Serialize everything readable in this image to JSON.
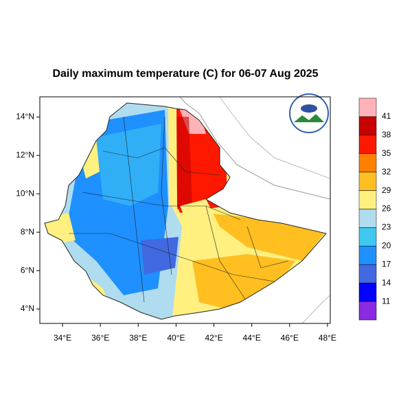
{
  "chart_data": {
    "type": "map",
    "title": "Daily maximum temperature (C) for 06-07 Aug 2025",
    "xlim": [
      32.8,
      48.15
    ],
    "ylim": [
      3.25,
      15.05
    ],
    "xticks": [
      {
        "value": 34,
        "label": "34°E"
      },
      {
        "value": 36,
        "label": "36°E"
      },
      {
        "value": 38,
        "label": "38°E"
      },
      {
        "value": 40,
        "label": "40°E"
      },
      {
        "value": 42,
        "label": "42°E"
      },
      {
        "value": 44,
        "label": "44°E"
      },
      {
        "value": 46,
        "label": "46°E"
      },
      {
        "value": 48,
        "label": "48°E"
      }
    ],
    "yticks": [
      {
        "value": 4,
        "label": "4°N"
      },
      {
        "value": 6,
        "label": "6°N"
      },
      {
        "value": 8,
        "label": "8°N"
      },
      {
        "value": 10,
        "label": "10°N"
      },
      {
        "value": 12,
        "label": "12°N"
      },
      {
        "value": 14,
        "label": "14°N"
      }
    ],
    "colorbar": {
      "levels": [
        41,
        38,
        35,
        32,
        29,
        26,
        23,
        20,
        17,
        14,
        11
      ],
      "colors": [
        "#ffb3b8",
        "#c80000",
        "#ff1800",
        "#ff8000",
        "#ffbf20",
        "#fff080",
        "#b0dcf0",
        "#40c8f0",
        "#1e90ff",
        "#4169e1",
        "#0000ff",
        "#8a2be2"
      ]
    }
  }
}
